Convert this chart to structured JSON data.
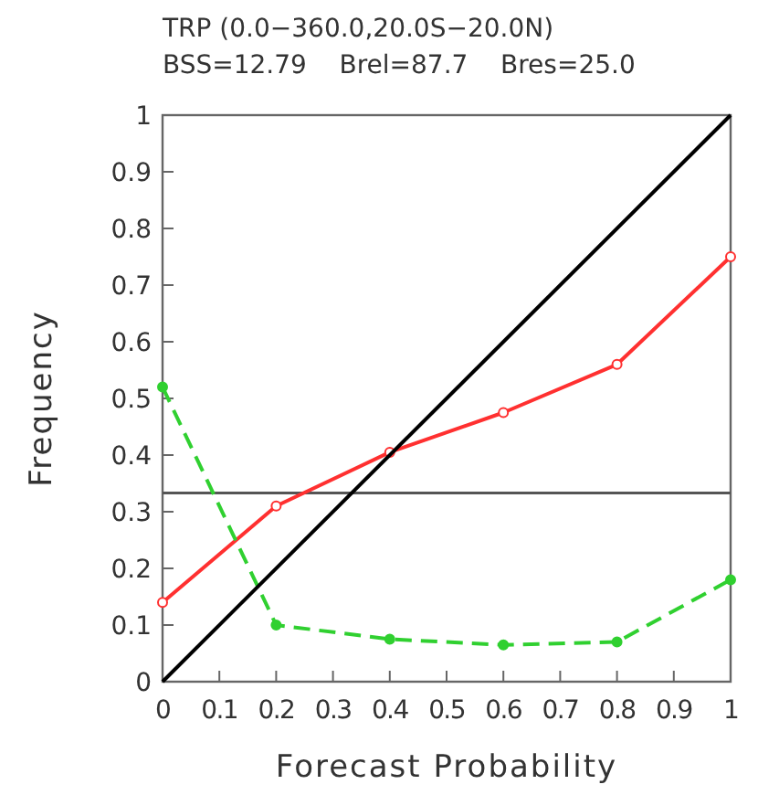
{
  "chart_data": {
    "type": "line",
    "title": "TRP  (0.0−360.0,20.0S−20.0N)",
    "subtitle": "BSS=12.79    Brel=87.7    Bres=25.0",
    "xlabel": "Forecast Probability",
    "ylabel": "Frequency",
    "x": [
      0,
      0.2,
      0.4,
      0.6,
      0.8,
      1
    ],
    "series": [
      {
        "color": "#ff3030",
        "values": [
          0.14,
          0.31,
          0.405,
          0.475,
          0.56,
          0.75
        ],
        "marker": "circle",
        "line_style": "solid"
      },
      {
        "color": "#30d030",
        "values": [
          0.52,
          0.1,
          0.075,
          0.065,
          0.07,
          0.18
        ],
        "marker": "circle",
        "line_style": "dashed"
      },
      {
        "color": "#000000",
        "x": [
          0,
          1
        ],
        "values": [
          0,
          1
        ],
        "marker": "none",
        "line_style": "solid"
      }
    ],
    "ref_lines": [
      {
        "axis": "y",
        "value": 0.333,
        "color": "#555555"
      }
    ],
    "xlim": [
      0,
      1
    ],
    "ylim": [
      0,
      1
    ],
    "xticks": [
      0,
      0.1,
      0.2,
      0.3,
      0.4,
      0.5,
      0.6,
      0.7,
      0.8,
      0.9,
      1
    ],
    "yticks": [
      0,
      0.1,
      0.2,
      0.3,
      0.4,
      0.5,
      0.6,
      0.7,
      0.8,
      0.9,
      1
    ],
    "grid": false
  }
}
